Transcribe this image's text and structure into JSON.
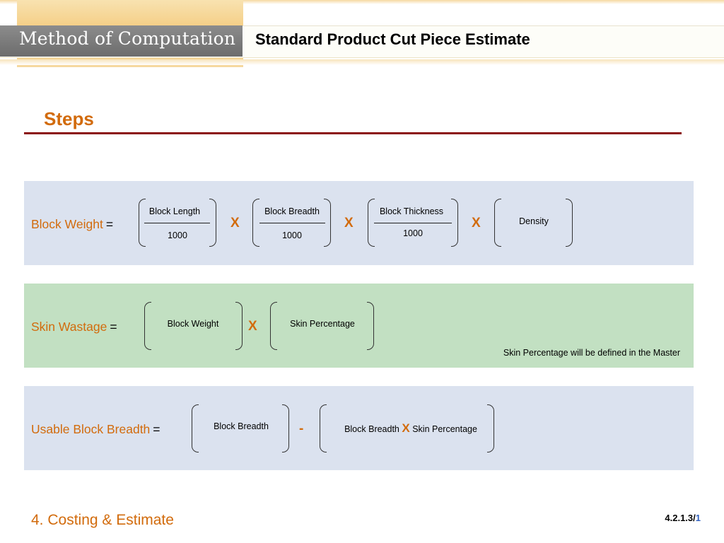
{
  "header": {
    "section": "Method of Computation",
    "title": "Standard Product Cut Piece Estimate"
  },
  "steps_title": "Steps",
  "formulas": {
    "block_weight": {
      "label": "Block Weight",
      "equals": "=",
      "length_num": "Block Length",
      "length_den": "1000",
      "breadth_num": "Block Breadth",
      "breadth_den": "1000",
      "thickness_num": "Block Thickness",
      "thickness_den": "1000",
      "density": "Density",
      "op": "X"
    },
    "skin_wastage": {
      "label": "Skin Wastage",
      "equals": "=",
      "term1": "Block Weight",
      "op": "X",
      "term2": "Skin Percentage",
      "note": "Skin Percentage will be defined in the Master"
    },
    "usable_block_breadth": {
      "label": "Usable Block Breadth",
      "equals": "=",
      "term1": "Block Breadth",
      "op": "-",
      "term2_a": "Block Breadth",
      "term2_op": "X",
      "term2_b": "Skin Percentage"
    }
  },
  "footer": {
    "chapter": "4. Costing & Estimate",
    "ref": "4.2.1.3/",
    "page": "1"
  }
}
